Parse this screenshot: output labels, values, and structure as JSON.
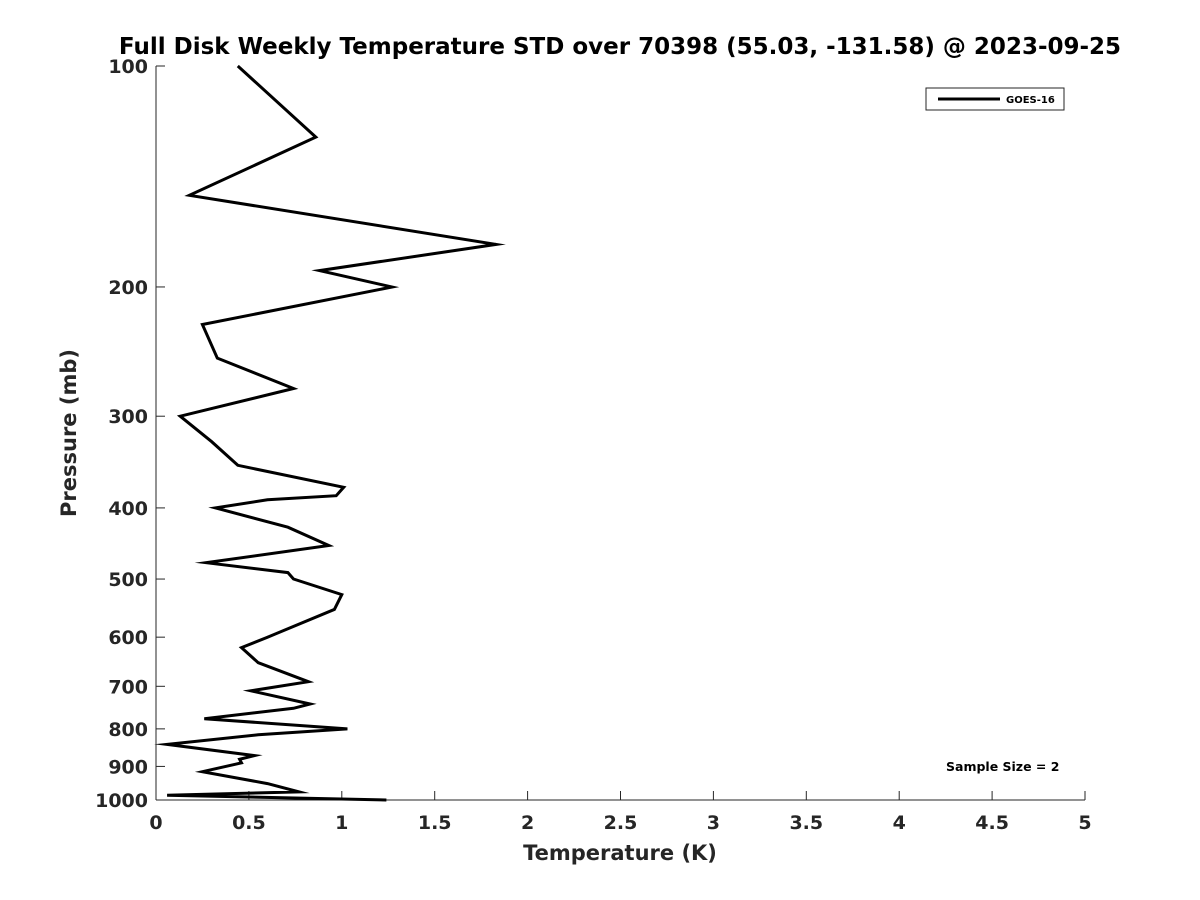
{
  "chart_data": {
    "type": "line",
    "title": "Full Disk Weekly Temperature STD over 70398 (55.03, -131.58) @ 2023-09-25",
    "xlabel": "Temperature (K)",
    "ylabel": "Pressure (mb)",
    "xlim": [
      0,
      5
    ],
    "ylim": [
      100,
      1000
    ],
    "y_scale": "log",
    "y_reversed": true,
    "x_ticks": [
      "0",
      "0.5",
      "1",
      "1.5",
      "2",
      "2.5",
      "3",
      "3.5",
      "4",
      "4.5",
      "5"
    ],
    "y_ticks": [
      "100",
      "200",
      "300",
      "400",
      "500",
      "600",
      "700",
      "800",
      "900",
      "1000"
    ],
    "grid": false,
    "legend_position": "top-right",
    "series": [
      {
        "name": "GOES-16",
        "color": "#000000",
        "x": [
          0.44,
          0.86,
          0.18,
          1.83,
          0.88,
          1.27,
          0.25,
          0.33,
          0.74,
          0.13,
          0.3,
          0.44,
          1.01,
          0.97,
          0.6,
          0.32,
          0.71,
          0.93,
          0.27,
          0.71,
          0.74,
          1.0,
          0.96,
          0.6,
          0.46,
          0.55,
          0.82,
          0.51,
          0.83,
          0.74,
          0.26,
          1.03,
          0.55,
          0.06,
          0.53,
          0.45,
          0.46,
          0.25,
          0.6,
          0.77,
          0.06,
          1.24
        ],
        "y": [
          100,
          125,
          150,
          175,
          190,
          200,
          225,
          250,
          275,
          300,
          325,
          350,
          375,
          385,
          390,
          400,
          425,
          450,
          475,
          490,
          500,
          525,
          550,
          600,
          620,
          650,
          690,
          710,
          740,
          750,
          775,
          800,
          815,
          840,
          870,
          880,
          890,
          915,
          950,
          975,
          985,
          1000
        ]
      }
    ],
    "annotations": [
      "Sample Size = 2"
    ]
  }
}
